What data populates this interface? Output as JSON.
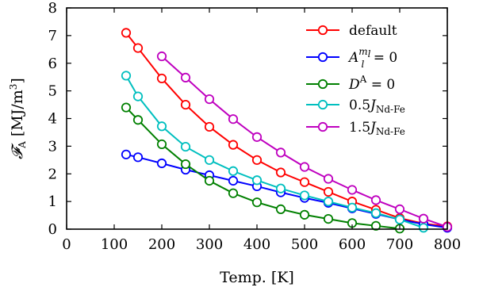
{
  "chart_data": {
    "type": "line",
    "xlabel": "Temp. [K]",
    "ylabel": {
      "main": "𝓕",
      "sub": "A",
      "unit": " [MJ/m",
      "unit_sup": "3",
      "unit_end": "]"
    },
    "xlim": [
      0,
      800
    ],
    "ylim": [
      0,
      8
    ],
    "xticks": [
      "0",
      "100",
      "200",
      "300",
      "400",
      "500",
      "600",
      "700",
      "800"
    ],
    "yticks": [
      "0",
      "1",
      "2",
      "3",
      "4",
      "5",
      "6",
      "7",
      "8"
    ],
    "grid": false,
    "legend_position": "top-right",
    "series": [
      {
        "name": "default",
        "label_parts": {
          "main": "default",
          "sup": "",
          "sub": "",
          "rest": ""
        },
        "color": "#ff0000",
        "x": [
          125,
          150,
          200,
          250,
          300,
          350,
          400,
          450,
          500,
          550,
          600,
          650,
          700,
          750,
          800
        ],
        "y": [
          7.1,
          6.55,
          5.45,
          4.5,
          3.7,
          3.05,
          2.5,
          2.05,
          1.7,
          1.35,
          1.0,
          0.7,
          0.4,
          0.2,
          0.1
        ]
      },
      {
        "name": "A_l^{m_l} = 0",
        "label_parts": {
          "main": "A",
          "sup": "m",
          "supsub": "l",
          "sub": "l",
          "rest": " = 0"
        },
        "color": "#0000ff",
        "x": [
          125,
          150,
          200,
          250,
          300,
          350,
          400,
          450,
          500,
          550,
          600,
          650,
          700,
          750,
          800
        ],
        "y": [
          2.7,
          2.6,
          2.38,
          2.15,
          1.95,
          1.75,
          1.55,
          1.33,
          1.13,
          0.95,
          0.75,
          0.55,
          0.35,
          0.18,
          0.05
        ]
      },
      {
        "name": "D^A = 0",
        "label_parts": {
          "main": "D",
          "sup": "A",
          "sub": "",
          "rest": " = 0"
        },
        "color": "#008000",
        "x": [
          125,
          150,
          200,
          250,
          300,
          350,
          400,
          450,
          500,
          550,
          600,
          650,
          700
        ],
        "y": [
          4.4,
          3.95,
          3.07,
          2.35,
          1.75,
          1.3,
          0.97,
          0.72,
          0.52,
          0.37,
          0.22,
          0.12,
          0.02
        ]
      },
      {
        "name": "0.5J_Nd-Fe",
        "label_parts": {
          "main": "0.5J",
          "sup": "",
          "sub": "Nd-Fe",
          "rest": ""
        },
        "color": "#00bfbf",
        "x": [
          125,
          150,
          200,
          250,
          300,
          350,
          400,
          450,
          500,
          550,
          600,
          650,
          700,
          750
        ],
        "y": [
          5.55,
          4.8,
          3.72,
          2.98,
          2.5,
          2.1,
          1.77,
          1.47,
          1.22,
          1.0,
          0.78,
          0.58,
          0.35,
          0.05
        ]
      },
      {
        "name": "1.5J_Nd-Fe",
        "label_parts": {
          "main": "1.5J",
          "sup": "",
          "sub": "Nd-Fe",
          "rest": ""
        },
        "color": "#bf00bf",
        "x": [
          200,
          250,
          300,
          350,
          400,
          450,
          500,
          550,
          600,
          650,
          700,
          750,
          800
        ],
        "y": [
          6.25,
          5.48,
          4.7,
          3.98,
          3.33,
          2.77,
          2.25,
          1.82,
          1.42,
          1.05,
          0.72,
          0.38,
          0.08
        ]
      }
    ]
  }
}
